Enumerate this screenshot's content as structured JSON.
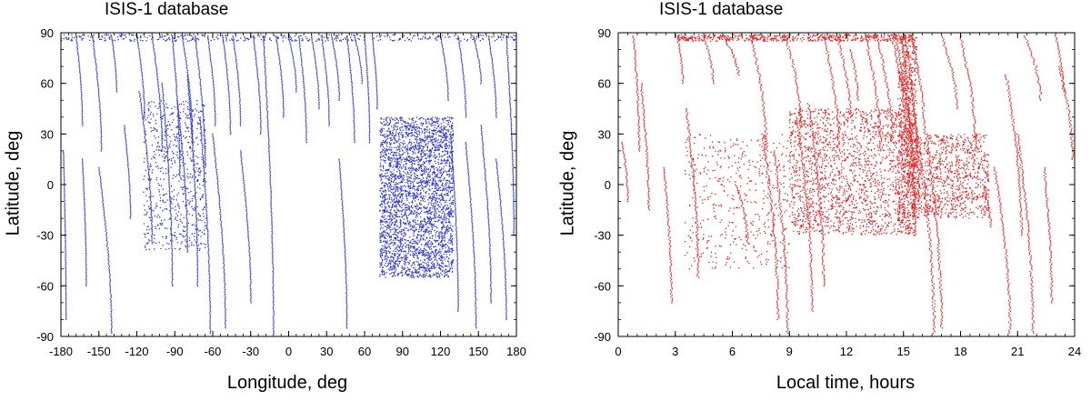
{
  "chart_data": [
    {
      "type": "scatter",
      "title": "ISIS-1 database",
      "xlabel": "Longitude, deg",
      "ylabel": "Latitude, deg",
      "xlim": [
        -180,
        180
      ],
      "ylim": [
        -90,
        90
      ],
      "xticks": [
        -180,
        -150,
        -120,
        -90,
        -60,
        -30,
        0,
        30,
        60,
        90,
        120,
        150,
        180
      ],
      "yticks": [
        -90,
        -60,
        -30,
        0,
        30,
        60,
        90
      ],
      "color": "#2b35e0",
      "grid": false,
      "series": [
        {
          "tracks": [
            {
              "x0": -178,
              "x1": -176,
              "latTop": 20,
              "latBot": -80
            },
            {
              "x0": -168,
              "x1": -163,
              "latTop": 88,
              "latBot": 35
            },
            {
              "x0": -163,
              "x1": -160,
              "latTop": 15,
              "latBot": -60
            },
            {
              "x0": -155,
              "x1": -148,
              "latTop": 88,
              "latBot": 20
            },
            {
              "x0": -150,
              "x1": -140,
              "latTop": 10,
              "latBot": -88
            },
            {
              "x0": -140,
              "x1": -136,
              "latTop": 88,
              "latBot": 55
            },
            {
              "x0": -130,
              "x1": -125,
              "latTop": 35,
              "latBot": -20
            },
            {
              "x0": -120,
              "x1": -114,
              "latTop": 88,
              "latBot": 40
            },
            {
              "x0": -118,
              "x1": -108,
              "latTop": 55,
              "latBot": -35
            },
            {
              "x0": -108,
              "x1": -100,
              "latTop": 88,
              "latBot": 20
            },
            {
              "x0": -100,
              "x1": -92,
              "latTop": 60,
              "latBot": -60
            },
            {
              "x0": -92,
              "x1": -86,
              "latTop": 88,
              "latBot": 5
            },
            {
              "x0": -88,
              "x1": -80,
              "latTop": 50,
              "latBot": -40
            },
            {
              "x0": -84,
              "x1": -76,
              "latTop": 88,
              "latBot": 25
            },
            {
              "x0": -80,
              "x1": -72,
              "latTop": 65,
              "latBot": -60
            },
            {
              "x0": -74,
              "x1": -66,
              "latTop": 88,
              "latBot": 10
            },
            {
              "x0": -70,
              "x1": -62,
              "latTop": 40,
              "latBot": -88
            },
            {
              "x0": -64,
              "x1": -58,
              "latTop": 88,
              "latBot": 35
            },
            {
              "x0": -60,
              "x1": -50,
              "latTop": 30,
              "latBot": -85
            },
            {
              "x0": -52,
              "x1": -46,
              "latTop": 88,
              "latBot": 30
            },
            {
              "x0": -44,
              "x1": -38,
              "latTop": 88,
              "latBot": 35
            },
            {
              "x0": -38,
              "x1": -30,
              "latTop": 20,
              "latBot": -70
            },
            {
              "x0": -28,
              "x1": -22,
              "latTop": 88,
              "latBot": 30
            },
            {
              "x0": -20,
              "x1": -12,
              "latTop": 88,
              "latBot": -88
            },
            {
              "x0": -10,
              "x1": -4,
              "latTop": 88,
              "latBot": 40
            },
            {
              "x0": 0,
              "x1": 6,
              "latTop": 88,
              "latBot": 55
            },
            {
              "x0": 8,
              "x1": 14,
              "latTop": 88,
              "latBot": 25
            },
            {
              "x0": 18,
              "x1": 24,
              "latTop": 88,
              "latBot": 45
            },
            {
              "x0": 26,
              "x1": 32,
              "latTop": 88,
              "latBot": 35
            },
            {
              "x0": 34,
              "x1": 40,
              "latTop": 88,
              "latBot": 50
            },
            {
              "x0": 40,
              "x1": 46,
              "latTop": 15,
              "latBot": -85
            },
            {
              "x0": 46,
              "x1": 52,
              "latTop": 88,
              "latBot": 25
            },
            {
              "x0": 52,
              "x1": 58,
              "latTop": 88,
              "latBot": 60
            },
            {
              "x0": 60,
              "x1": 64,
              "latTop": 88,
              "latBot": 25
            },
            {
              "x0": 66,
              "x1": 70,
              "latTop": 88,
              "latBot": 45
            },
            {
              "x0": 120,
              "x1": 126,
              "latTop": 88,
              "latBot": 50
            },
            {
              "x0": 128,
              "x1": 134,
              "latTop": 30,
              "latBot": -75
            },
            {
              "x0": 134,
              "x1": 140,
              "latTop": 88,
              "latBot": 40
            },
            {
              "x0": 140,
              "x1": 148,
              "latTop": 25,
              "latBot": -85
            },
            {
              "x0": 146,
              "x1": 152,
              "latTop": 88,
              "latBot": 60
            },
            {
              "x0": 152,
              "x1": 160,
              "latTop": 35,
              "latBot": -70
            },
            {
              "x0": 158,
              "x1": 164,
              "latTop": 88,
              "latBot": 40
            },
            {
              "x0": 164,
              "x1": 172,
              "latTop": 15,
              "latBot": -80
            },
            {
              "x0": 172,
              "x1": 178,
              "latTop": 88,
              "latBot": -30
            }
          ],
          "clusters": [
            {
              "xmin": 72,
              "xmax": 130,
              "ymin": -55,
              "ymax": 40,
              "n": 3200
            },
            {
              "xmin": -115,
              "xmax": -65,
              "ymin": -40,
              "ymax": 50,
              "n": 650
            },
            {
              "xmin": -180,
              "xmax": 180,
              "ymin": 85,
              "ymax": 89,
              "n": 380
            }
          ]
        }
      ]
    },
    {
      "type": "scatter",
      "title": "ISIS-1 database",
      "xlabel": "Local time, hours",
      "ylabel": "Latitude, deg",
      "xlim": [
        0,
        24
      ],
      "ylim": [
        -90,
        90
      ],
      "xticks": [
        0,
        3,
        6,
        9,
        12,
        15,
        18,
        21,
        24
      ],
      "yticks": [
        -90,
        -60,
        -30,
        0,
        30,
        60,
        90
      ],
      "color": "#f01c1c",
      "grid": false,
      "series": [
        {
          "tracks": [
            {
              "x0": 0.2,
              "x1": 0.5,
              "latTop": 25,
              "latBot": -10
            },
            {
              "x0": 0.8,
              "x1": 1.1,
              "latTop": 88,
              "latBot": 20
            },
            {
              "x0": 1.2,
              "x1": 1.6,
              "latTop": 60,
              "latBot": -15
            },
            {
              "x0": 2.4,
              "x1": 2.8,
              "latTop": 10,
              "latBot": -70
            },
            {
              "x0": 3.1,
              "x1": 3.4,
              "latTop": 88,
              "latBot": 60
            },
            {
              "x0": 3.6,
              "x1": 4.2,
              "latTop": 45,
              "latBot": -55
            },
            {
              "x0": 4.5,
              "x1": 5.0,
              "latTop": 88,
              "latBot": 60
            },
            {
              "x0": 5.5,
              "x1": 6.3,
              "latTop": 88,
              "latBot": 65
            },
            {
              "x0": 6.2,
              "x1": 6.8,
              "latTop": 0,
              "latBot": -35
            },
            {
              "x0": 7.0,
              "x1": 7.8,
              "latTop": 88,
              "latBot": 20
            },
            {
              "x0": 7.6,
              "x1": 8.4,
              "latTop": 30,
              "latBot": -80
            },
            {
              "x0": 8.2,
              "x1": 8.9,
              "latTop": 20,
              "latBot": -88
            },
            {
              "x0": 8.8,
              "x1": 9.6,
              "latTop": 88,
              "latBot": 35
            },
            {
              "x0": 9.4,
              "x1": 10.2,
              "latTop": 40,
              "latBot": -75
            },
            {
              "x0": 10.0,
              "x1": 10.8,
              "latTop": 48,
              "latBot": -60
            },
            {
              "x0": 10.8,
              "x1": 11.6,
              "latTop": 88,
              "latBot": 20
            },
            {
              "x0": 11.5,
              "x1": 12.2,
              "latTop": 88,
              "latBot": 40
            },
            {
              "x0": 12.2,
              "x1": 12.6,
              "latTop": 80,
              "latBot": 50
            },
            {
              "x0": 13.0,
              "x1": 13.8,
              "latTop": 88,
              "latBot": 20
            },
            {
              "x0": 13.6,
              "x1": 14.4,
              "latTop": 88,
              "latBot": 25
            },
            {
              "x0": 14.4,
              "x1": 15.2,
              "latTop": 88,
              "latBot": 20
            },
            {
              "x0": 14.6,
              "x1": 15.4,
              "latTop": 88,
              "latBot": 10
            },
            {
              "x0": 14.9,
              "x1": 15.6,
              "latTop": 88,
              "latBot": -30
            },
            {
              "x0": 15.1,
              "x1": 15.8,
              "latTop": 88,
              "latBot": -10
            },
            {
              "x0": 15.4,
              "x1": 16.1,
              "latTop": 88,
              "latBot": 30
            },
            {
              "x0": 15.6,
              "x1": 16.6,
              "latTop": 40,
              "latBot": -88
            },
            {
              "x0": 16.2,
              "x1": 17.0,
              "latTop": 30,
              "latBot": -85
            },
            {
              "x0": 17.0,
              "x1": 17.8,
              "latTop": 88,
              "latBot": 45
            },
            {
              "x0": 18.0,
              "x1": 18.8,
              "latTop": 88,
              "latBot": 20
            },
            {
              "x0": 19.2,
              "x1": 19.6,
              "latTop": 0,
              "latBot": -25
            },
            {
              "x0": 19.8,
              "x1": 20.6,
              "latTop": 10,
              "latBot": -88
            },
            {
              "x0": 20.4,
              "x1": 21.2,
              "latTop": 65,
              "latBot": -30
            },
            {
              "x0": 21.0,
              "x1": 21.8,
              "latTop": 30,
              "latBot": -88
            },
            {
              "x0": 21.4,
              "x1": 22.2,
              "latTop": 88,
              "latBot": 50
            },
            {
              "x0": 22.4,
              "x1": 22.8,
              "latTop": 10,
              "latBot": -70
            },
            {
              "x0": 23.0,
              "x1": 23.4,
              "latTop": 88,
              "latBot": 55
            },
            {
              "x0": 23.2,
              "x1": 23.9,
              "latTop": 70,
              "latBot": 15
            }
          ],
          "clusters": [
            {
              "xmin": 9.0,
              "xmax": 15.5,
              "ymin": -30,
              "ymax": 45,
              "n": 1800
            },
            {
              "xmin": 15.5,
              "xmax": 19.5,
              "ymin": -20,
              "ymax": 30,
              "n": 900
            },
            {
              "xmin": 3.5,
              "xmax": 9.0,
              "ymin": -50,
              "ymax": 30,
              "n": 450
            },
            {
              "xmin": 3.0,
              "xmax": 15.5,
              "ymin": 85,
              "ymax": 89,
              "n": 520
            },
            {
              "xmin": 14.7,
              "xmax": 15.7,
              "ymin": -30,
              "ymax": 88,
              "n": 700
            }
          ]
        }
      ]
    }
  ]
}
